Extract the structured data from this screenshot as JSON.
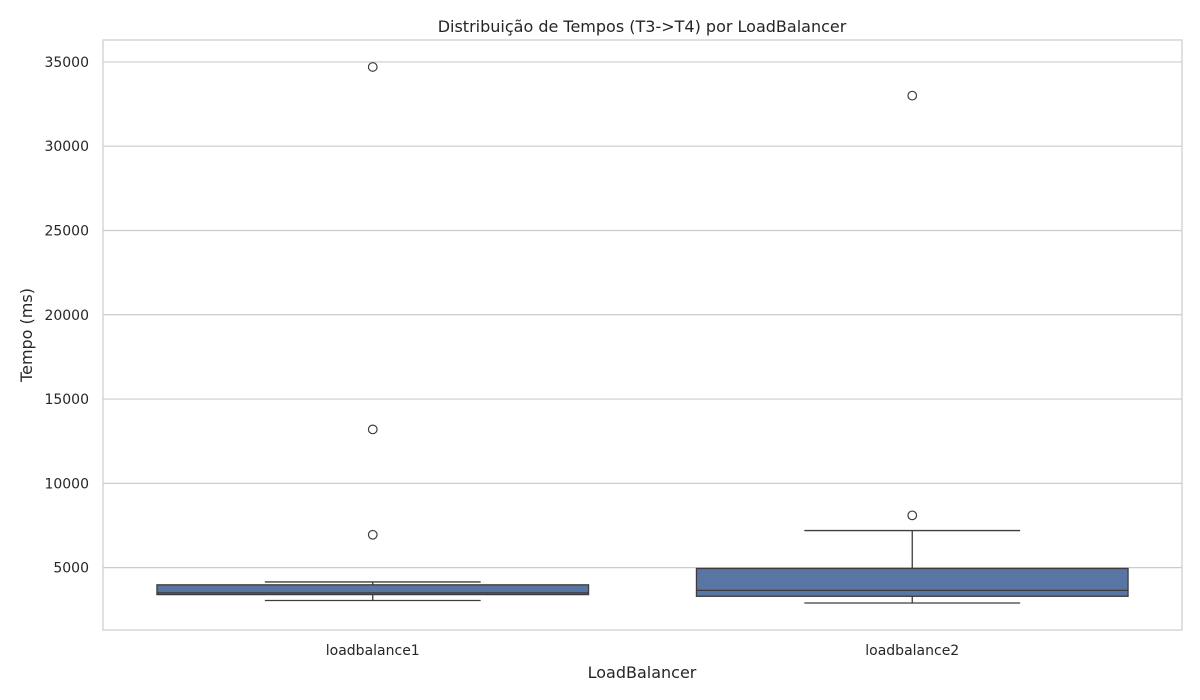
{
  "chart_data": {
    "type": "box",
    "title": "Distribuição de Tempos (T3->T4) por LoadBalancer",
    "xlabel": "LoadBalancer",
    "ylabel": "Tempo (ms)",
    "ylim": [
      1300,
      36300
    ],
    "yticks": [
      5000,
      10000,
      15000,
      20000,
      25000,
      30000,
      35000
    ],
    "grid": true,
    "categories": [
      "loadbalance1",
      "loadbalance2"
    ],
    "boxes": [
      {
        "category": "loadbalance1",
        "whisker_low": 3050,
        "q1": 3400,
        "median": 3500,
        "q3": 3980,
        "whisker_high": 4150,
        "outliers": [
          34700,
          13200,
          6950
        ]
      },
      {
        "category": "loadbalance2",
        "whisker_low": 2900,
        "q1": 3300,
        "median": 3650,
        "q3": 4950,
        "whisker_high": 7200,
        "outliers": [
          33000,
          8100
        ]
      }
    ],
    "colors": {
      "box": "#5875a4",
      "line": "#3d3d3d",
      "grid": "#cccccc"
    }
  }
}
